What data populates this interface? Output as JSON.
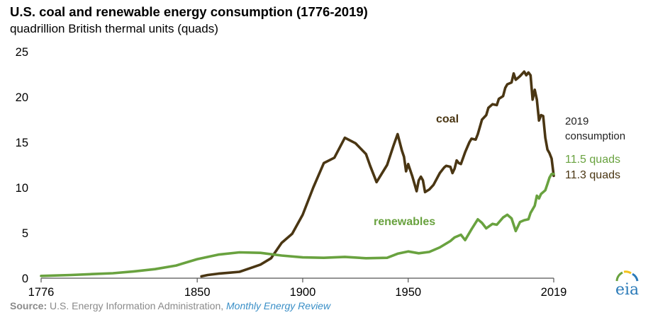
{
  "header": {
    "title": "U.S. coal and renewable energy consumption (1776-2019)",
    "subtitle": "quadrillion British thermal units (quads)"
  },
  "footer": {
    "source_label": "Source:",
    "source_org": "U.S. Energy Information Administration,",
    "source_pub": "Monthly Energy Review",
    "logo_text": "eia"
  },
  "colors": {
    "coal": "#4a3613",
    "renewables": "#69a23f",
    "axis": "#555555",
    "logo_blue": "#2a7ab8",
    "logo_green": "#69a23f",
    "logo_yellow": "#f2c21a"
  },
  "chart_data": {
    "type": "line",
    "title": "U.S. coal and renewable energy consumption (1776-2019)",
    "ylabel": "quadrillion British thermal units (quads)",
    "xlabel": "",
    "xlim": [
      1776,
      2019
    ],
    "ylim": [
      0,
      25
    ],
    "x_ticks": [
      1776,
      1850,
      1900,
      1950,
      2019
    ],
    "y_ticks": [
      0,
      5,
      10,
      15,
      20,
      25
    ],
    "x_tick_labels": [
      "1776",
      "1850",
      "1900",
      "1950",
      "2019"
    ],
    "y_tick_labels": [
      "0",
      "5",
      "10",
      "15",
      "20",
      "25"
    ],
    "grid": false,
    "series": [
      {
        "name": "coal",
        "label": "coal",
        "x": [
          1852,
          1855,
          1860,
          1865,
          1870,
          1875,
          1880,
          1885,
          1890,
          1895,
          1900,
          1905,
          1910,
          1915,
          1920,
          1925,
          1930,
          1932,
          1935,
          1940,
          1943,
          1945,
          1947,
          1948,
          1949,
          1950,
          1952,
          1954,
          1955,
          1956,
          1957,
          1958,
          1960,
          1962,
          1965,
          1967,
          1968,
          1970,
          1971,
          1972,
          1973,
          1974,
          1975,
          1977,
          1979,
          1980,
          1982,
          1983,
          1985,
          1987,
          1988,
          1990,
          1992,
          1993,
          1995,
          1996,
          1997,
          1999,
          2000,
          2001,
          2003,
          2005,
          2006,
          2007,
          2008,
          2009,
          2010,
          2011,
          2012,
          2013,
          2014,
          2015,
          2016,
          2017,
          2018,
          2019
        ],
        "values": [
          0.2,
          0.35,
          0.5,
          0.6,
          0.7,
          1.1,
          1.5,
          2.2,
          3.9,
          4.9,
          7.0,
          10.0,
          12.7,
          13.3,
          15.5,
          14.9,
          13.7,
          12.4,
          10.6,
          12.5,
          14.6,
          15.9,
          14.1,
          13.4,
          11.8,
          12.6,
          11.2,
          9.6,
          10.8,
          11.2,
          10.8,
          9.5,
          9.8,
          10.3,
          11.6,
          12.2,
          12.4,
          12.3,
          11.6,
          12.1,
          13.0,
          12.7,
          12.6,
          13.9,
          15.0,
          15.4,
          15.3,
          15.9,
          17.5,
          18.0,
          18.8,
          19.2,
          19.1,
          19.8,
          20.1,
          21.0,
          21.4,
          21.6,
          22.6,
          21.9,
          22.3,
          22.8,
          22.4,
          22.7,
          22.4,
          19.7,
          20.8,
          19.7,
          17.4,
          18.0,
          17.9,
          15.5,
          14.2,
          13.8,
          13.2,
          11.3
        ],
        "end_label": "11.3 quads"
      },
      {
        "name": "renewables",
        "label": "renewables",
        "x": [
          1776,
          1790,
          1800,
          1810,
          1820,
          1830,
          1840,
          1850,
          1860,
          1870,
          1880,
          1890,
          1900,
          1910,
          1920,
          1930,
          1940,
          1945,
          1950,
          1955,
          1960,
          1965,
          1970,
          1972,
          1975,
          1977,
          1980,
          1983,
          1985,
          1987,
          1990,
          1992,
          1995,
          1997,
          1999,
          2001,
          2003,
          2005,
          2007,
          2008,
          2010,
          2011,
          2012,
          2013,
          2015,
          2016,
          2017,
          2018,
          2019
        ],
        "values": [
          0.25,
          0.35,
          0.45,
          0.55,
          0.75,
          1.0,
          1.4,
          2.1,
          2.6,
          2.85,
          2.8,
          2.5,
          2.3,
          2.25,
          2.35,
          2.2,
          2.25,
          2.7,
          2.95,
          2.75,
          2.9,
          3.4,
          4.1,
          4.5,
          4.8,
          4.2,
          5.4,
          6.5,
          6.1,
          5.5,
          6.0,
          5.9,
          6.7,
          7.0,
          6.6,
          5.2,
          6.2,
          6.4,
          6.5,
          7.2,
          8.0,
          9.1,
          8.8,
          9.3,
          9.7,
          10.4,
          11.1,
          11.5,
          11.5
        ],
        "end_label": "11.5 quads"
      }
    ],
    "annotations": {
      "consumption_year": "2019",
      "consumption_word": "consumption"
    }
  }
}
